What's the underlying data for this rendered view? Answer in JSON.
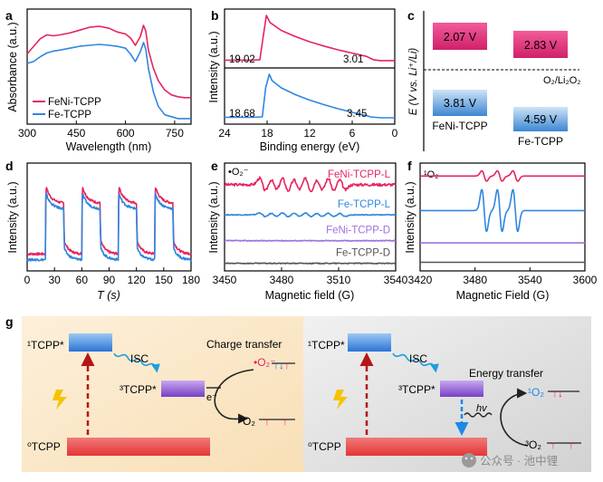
{
  "colors": {
    "pink": "#e6245e",
    "blue": "#2f86e0",
    "purple": "#a070e0",
    "gray": "#555555",
    "red": "#c81e1e"
  },
  "panel_letters": {
    "a": "a",
    "b": "b",
    "c": "c",
    "d": "d",
    "e": "e",
    "f": "f",
    "g": "g"
  },
  "chart_data": [
    {
      "panel": "a",
      "type": "line",
      "xlabel": "Wavelength (nm)",
      "ylabel": "Absorbance (a.u.)",
      "xlim": [
        300,
        800
      ],
      "xticks": [
        300,
        450,
        600,
        750
      ],
      "legend": {
        "placement": "bottom-left",
        "entries": [
          "FeNi-TCPP",
          "Fe-TCPP"
        ]
      },
      "series": [
        {
          "name": "FeNi-TCPP",
          "color": "#e6245e",
          "x": [
            300,
            320,
            340,
            360,
            380,
            400,
            430,
            460,
            490,
            520,
            550,
            575,
            600,
            615,
            630,
            645,
            655,
            662,
            670,
            685,
            700,
            720,
            740,
            760,
            780,
            800
          ],
          "y": [
            0.7,
            0.78,
            0.86,
            0.9,
            0.89,
            0.9,
            0.92,
            0.95,
            0.98,
            0.99,
            0.97,
            0.93,
            0.91,
            0.87,
            0.79,
            0.88,
            1.0,
            0.94,
            0.74,
            0.55,
            0.42,
            0.32,
            0.27,
            0.25,
            0.24,
            0.24
          ]
        },
        {
          "name": "Fe-TCPP",
          "color": "#2f86e0",
          "x": [
            300,
            320,
            340,
            360,
            380,
            400,
            430,
            460,
            490,
            520,
            550,
            575,
            600,
            615,
            630,
            645,
            655,
            662,
            670,
            685,
            700,
            720,
            740,
            760,
            780,
            800
          ],
          "y": [
            0.6,
            0.62,
            0.67,
            0.71,
            0.73,
            0.74,
            0.76,
            0.78,
            0.79,
            0.8,
            0.79,
            0.78,
            0.76,
            0.7,
            0.62,
            0.72,
            0.82,
            0.75,
            0.55,
            0.3,
            0.15,
            0.06,
            0.04,
            0.02,
            0.02,
            0.02
          ]
        }
      ]
    },
    {
      "panel": "b",
      "type": "line",
      "xlabel": "Binding energy (eV)",
      "ylabel": "Intensity (a.u.)",
      "xlim": [
        24,
        0
      ],
      "xticks": [
        24,
        18,
        12,
        6,
        0
      ],
      "annotations": {
        "top_left": "19.02",
        "top_right": "3.01",
        "bottom_left": "18.68",
        "bottom_right": "3.45"
      },
      "series": [
        {
          "name": "FeNi-TCPP",
          "color": "#e6245e",
          "x": [
            24,
            20,
            19.02,
            18.5,
            18.1,
            17.6,
            16,
            14,
            12,
            10,
            8,
            6,
            4,
            3.01,
            2,
            0
          ],
          "y": [
            0.05,
            0.05,
            0.06,
            0.6,
            1.0,
            0.85,
            0.68,
            0.55,
            0.44,
            0.35,
            0.27,
            0.2,
            0.13,
            0.06,
            0.04,
            0.04
          ]
        },
        {
          "name": "Fe-TCPP",
          "color": "#2f86e0",
          "x": [
            24,
            20,
            18.68,
            18.2,
            17.7,
            17.3,
            16,
            14,
            12,
            10,
            8,
            6,
            4,
            3.45,
            2,
            0
          ],
          "y": [
            0.05,
            0.05,
            0.06,
            0.7,
            1.0,
            0.86,
            0.7,
            0.55,
            0.43,
            0.33,
            0.24,
            0.16,
            0.09,
            0.06,
            0.04,
            0.04
          ]
        }
      ]
    },
    {
      "panel": "c",
      "type": "bar",
      "ylabel": "E (V vs. Li⁺/Li)",
      "reference_label": "O₂/Li₂O₂",
      "categories": [
        "FeNi-TCPP",
        "Fe-TCPP"
      ],
      "boxes": [
        {
          "category": "FeNi-TCPP",
          "level": "upper",
          "label": "2.07 V",
          "color": "#e6245e"
        },
        {
          "category": "Fe-TCPP",
          "level": "upper",
          "label": "2.83 V",
          "color": "#e6245e"
        },
        {
          "category": "FeNi-TCPP",
          "level": "lower",
          "label": "3.81 V",
          "color": "#2f86e0"
        },
        {
          "category": "Fe-TCPP",
          "level": "lower",
          "label": "4.59 V",
          "color": "#2f86e0"
        }
      ]
    },
    {
      "panel": "d",
      "type": "line",
      "xlabel": "T (s)",
      "ylabel": "Intensity (a.u.)",
      "xlim": [
        0,
        180
      ],
      "xticks": [
        0,
        30,
        60,
        90,
        120,
        150,
        180
      ],
      "on_periods": [
        [
          20,
          40
        ],
        [
          60,
          80
        ],
        [
          100,
          120
        ],
        [
          140,
          160
        ]
      ],
      "series": [
        {
          "name": "FeNi-TCPP",
          "color": "#e6245e",
          "off_level": 0.14,
          "spike": 0.86,
          "plateau": 0.74,
          "settle": 0.66,
          "tail": 0.3
        },
        {
          "name": "Fe-TCPP",
          "color": "#2f86e0",
          "off_level": 0.08,
          "spike": 0.78,
          "plateau": 0.68,
          "settle": 0.6,
          "tail": 0.22
        }
      ]
    },
    {
      "panel": "e",
      "type": "line",
      "xlabel": "Magnetic field (G)",
      "ylabel": "Intensity (a.u.)",
      "corner_label": "•O₂⁻",
      "xlim": [
        3450,
        3540
      ],
      "xticks": [
        3450,
        3480,
        3510,
        3540
      ],
      "series": [
        {
          "name": "FeNi-TCPP-L",
          "color": "#e6245e",
          "offset": 0.8,
          "amplitude": 0.1
        },
        {
          "name": "Fe-TCPP-L",
          "color": "#2f86e0",
          "offset": 0.52,
          "amplitude": 0.03
        },
        {
          "name": "FeNi-TCPP-D",
          "color": "#a070e0",
          "offset": 0.28,
          "amplitude": 0.0
        },
        {
          "name": "Fe-TCPP-D",
          "color": "#555555",
          "offset": 0.07,
          "amplitude": 0.0
        }
      ]
    },
    {
      "panel": "f",
      "type": "line",
      "xlabel": "Magnetic Field (G)",
      "ylabel": "Intensity (a.u.)",
      "corner_label": "¹O₂",
      "xlim": [
        3420,
        3600
      ],
      "xticks": [
        3420,
        3480,
        3540,
        3600
      ],
      "peaks": [
        3490,
        3507,
        3524
      ],
      "series": [
        {
          "color": "#e6245e",
          "offset": 0.88,
          "amplitude": 0.05
        },
        {
          "color": "#2f86e0",
          "offset": 0.56,
          "amplitude": 0.2
        },
        {
          "color": "#a070e0",
          "offset": 0.26,
          "amplitude": 0.0
        },
        {
          "color": "#555555",
          "offset": 0.08,
          "amplitude": 0.0
        }
      ]
    }
  ],
  "panel_g": {
    "left": {
      "s1": "¹TCPP*",
      "s0": "⁰TCPP",
      "t1": "³TCPP*",
      "isc": "ISC",
      "title": "Charge transfer",
      "superoxide": "•O₂⁻",
      "electron": "e⁻",
      "oxygen": "³O₂"
    },
    "right": {
      "s1": "¹TCPP*",
      "s0": "⁰TCPP",
      "t1": "³TCPP*",
      "isc": "ISC",
      "title": "Energy transfer",
      "hv": "hv",
      "singlet": "¹O₂",
      "oxygen": "³O₂"
    },
    "watermark": "公众号 · 池中锂"
  }
}
